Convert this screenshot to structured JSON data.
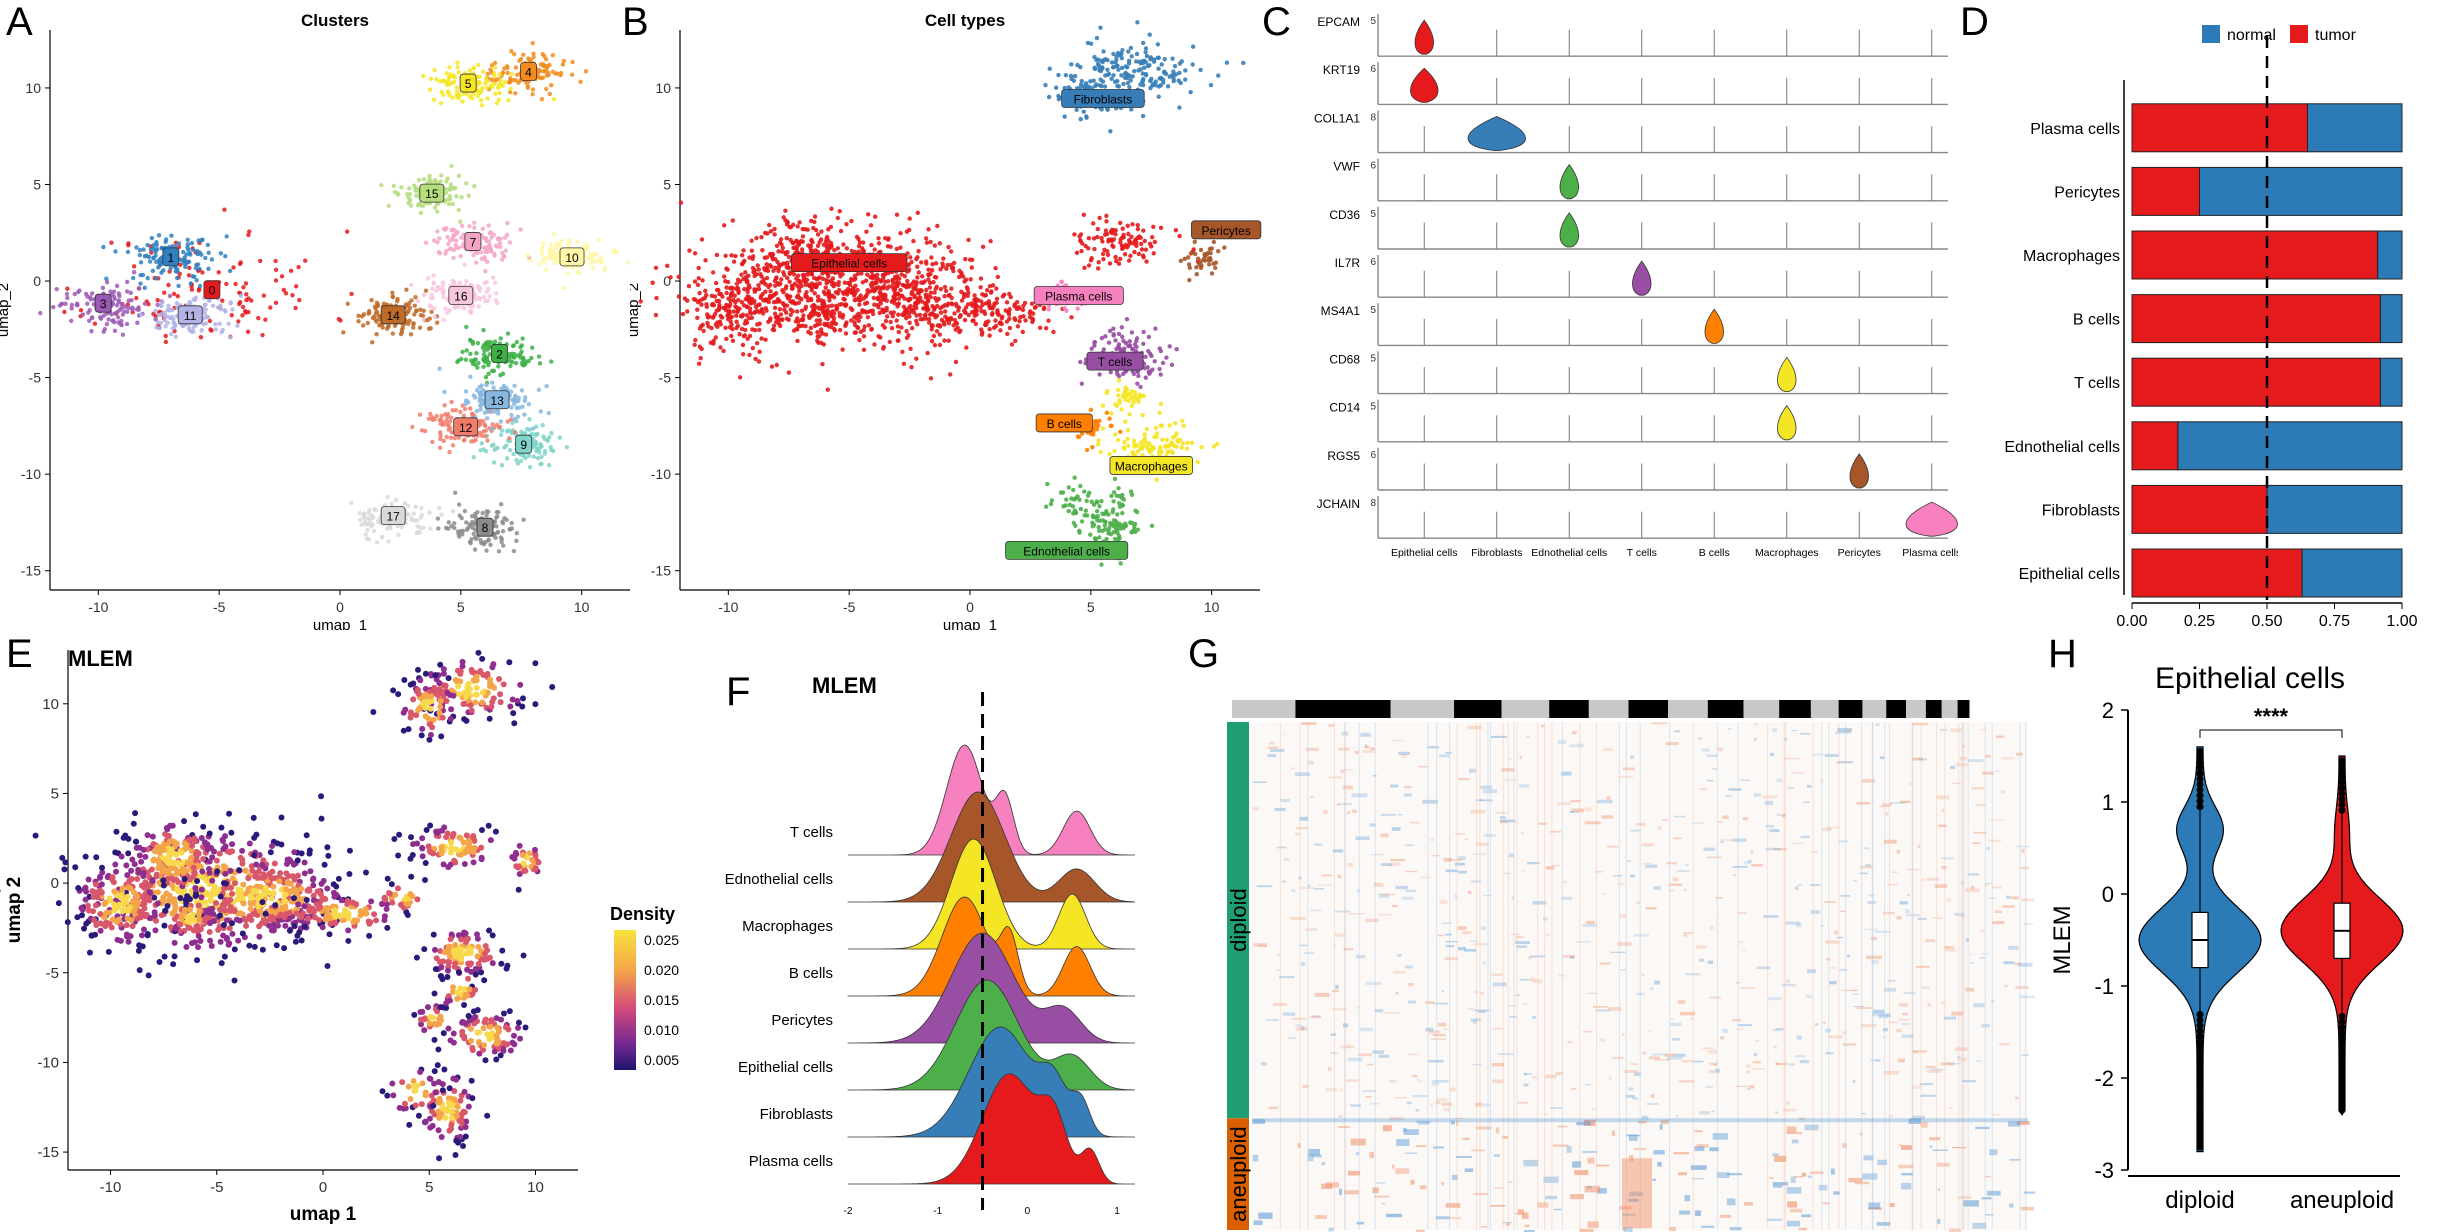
{
  "panel_letters": {
    "A": "A",
    "B": "B",
    "C": "C",
    "D": "D",
    "E": "E",
    "F": "F",
    "G": "G",
    "H": "H"
  },
  "colors": {
    "epithelial": "#e41a1c",
    "fibroblasts": "#377eb8",
    "endothelial": "#4daf4a",
    "tcells": "#984ea3",
    "bcells": "#ff7f00",
    "macrophages": "#f5e625",
    "pericytes": "#a65628",
    "plasma": "#f781bf",
    "normal": "#2c7bb6",
    "tumor": "#e41a1c",
    "diploid": "#1f9e73",
    "aneuploid": "#d95f02"
  },
  "chart_data": [
    {
      "id": "A",
      "type": "scatter",
      "title": "Clusters",
      "xlabel": "umap_1",
      "ylabel": "umap_2",
      "xlim": [
        -12,
        12
      ],
      "ylim": [
        -16,
        13
      ],
      "xticks": [
        "-10",
        "-5",
        "0",
        "5",
        "10"
      ],
      "yticks": [
        "10",
        "5",
        "0",
        "-5",
        "-10",
        "-15"
      ],
      "clusters": [
        {
          "label": "0",
          "x": -5.3,
          "y": -0.5,
          "color": "#e41a1c"
        },
        {
          "label": "1",
          "x": -7.0,
          "y": 1.2,
          "color": "#2f7fc1"
        },
        {
          "label": "2",
          "x": 6.6,
          "y": -3.8,
          "color": "#3cb044"
        },
        {
          "label": "3",
          "x": -9.8,
          "y": -1.2,
          "color": "#9b59b6"
        },
        {
          "label": "4",
          "x": 7.8,
          "y": 10.8,
          "color": "#f28c1e"
        },
        {
          "label": "5",
          "x": 5.3,
          "y": 10.2,
          "color": "#f5e625"
        },
        {
          "label": "7",
          "x": 5.5,
          "y": 2.0,
          "color": "#f4a6c8"
        },
        {
          "label": "8",
          "x": 6.0,
          "y": -12.8,
          "color": "#8c8c8c"
        },
        {
          "label": "9",
          "x": 7.6,
          "y": -8.5,
          "color": "#7fd3c8"
        },
        {
          "label": "10",
          "x": 9.6,
          "y": 1.2,
          "color": "#fff7a8"
        },
        {
          "label": "11",
          "x": -6.2,
          "y": -1.8,
          "color": "#b3b3e6"
        },
        {
          "label": "12",
          "x": 5.2,
          "y": -7.6,
          "color": "#f07c6c"
        },
        {
          "label": "13",
          "x": 6.5,
          "y": -6.2,
          "color": "#86b7e0"
        },
        {
          "label": "14",
          "x": 2.2,
          "y": -1.8,
          "color": "#c06a27"
        },
        {
          "label": "15",
          "x": 3.8,
          "y": 4.5,
          "color": "#b5dd7d"
        },
        {
          "label": "16",
          "x": 5.0,
          "y": -0.8,
          "color": "#f9c6df"
        },
        {
          "label": "17",
          "x": 2.2,
          "y": -12.2,
          "color": "#d9d9d9"
        }
      ]
    },
    {
      "id": "B",
      "type": "scatter",
      "title": "Cell types",
      "xlabel": "umap_1",
      "ylabel": "umap_2",
      "xlim": [
        -12,
        12
      ],
      "ylim": [
        -16,
        13
      ],
      "xticks": [
        "-10",
        "-5",
        "0",
        "5",
        "10"
      ],
      "yticks": [
        "10",
        "5",
        "0",
        "-5",
        "-10",
        "-15"
      ],
      "labels": [
        {
          "label": "Fibroblasts",
          "x": 5.5,
          "y": 9.4
        },
        {
          "label": "Pericytes",
          "x": 10.6,
          "y": 2.6
        },
        {
          "label": "Epithelial cells",
          "x": -5.0,
          "y": 0.9
        },
        {
          "label": "Plasma cells",
          "x": 4.5,
          "y": -0.8
        },
        {
          "label": "T cells",
          "x": 6.0,
          "y": -4.2
        },
        {
          "label": "B cells",
          "x": 3.9,
          "y": -7.4
        },
        {
          "label": "Macrophages",
          "x": 7.5,
          "y": -9.6
        },
        {
          "label": "Ednothelial cells",
          "x": 4.0,
          "y": -14.0
        }
      ]
    },
    {
      "id": "C",
      "type": "violin-stack",
      "genes": [
        {
          "gene": "EPCAM",
          "max": "5",
          "cell": 0
        },
        {
          "gene": "KRT19",
          "max": "6",
          "cell": 0
        },
        {
          "gene": "COL1A1",
          "max": "8",
          "cell": 1
        },
        {
          "gene": "VWF",
          "max": "6",
          "cell": 2
        },
        {
          "gene": "CD36",
          "max": "5",
          "cell": 2
        },
        {
          "gene": "IL7R",
          "max": "6",
          "cell": 3
        },
        {
          "gene": "MS4A1",
          "max": "5",
          "cell": 4
        },
        {
          "gene": "CD68",
          "max": "5",
          "cell": 5
        },
        {
          "gene": "CD14",
          "max": "5",
          "cell": 5
        },
        {
          "gene": "RGS5",
          "max": "6",
          "cell": 6
        },
        {
          "gene": "JCHAIN",
          "max": "8",
          "cell": 7
        }
      ],
      "cell_types": [
        "Epithelial cells",
        "Fibroblasts",
        "Ednothelial cells",
        "T cells",
        "B cells",
        "Macrophages",
        "Pericytes",
        "Plasma cells"
      ]
    },
    {
      "id": "D",
      "type": "bar",
      "orientation": "horizontal",
      "stacked": true,
      "legend": [
        "normal",
        "tumor"
      ],
      "categories": [
        "Plasma cells",
        "Pericytes",
        "Macrophages",
        "B cells",
        "T cells",
        "Ednothelial cells",
        "Fibroblasts",
        "Epithelial cells"
      ],
      "series": [
        {
          "name": "tumor",
          "values": [
            0.65,
            0.25,
            0.91,
            0.92,
            0.92,
            0.17,
            0.5,
            0.63
          ]
        },
        {
          "name": "normal",
          "values": [
            0.35,
            0.75,
            0.09,
            0.08,
            0.08,
            0.83,
            0.5,
            0.37
          ]
        }
      ],
      "xlim": [
        0,
        1
      ],
      "xticks": [
        "0.00",
        "0.25",
        "0.50",
        "0.75",
        "1.00"
      ],
      "refline": 0.5
    },
    {
      "id": "E",
      "type": "scatter",
      "title": "MLEM",
      "xlabel": "umap 1",
      "ylabel": "umap 2",
      "xlim": [
        -12,
        12
      ],
      "ylim": [
        -16,
        13
      ],
      "xticks": [
        "-10",
        "-5",
        "0",
        "5",
        "10"
      ],
      "yticks": [
        "10",
        "5",
        "0",
        "-5",
        "-10",
        "-15"
      ],
      "legend_title": "Density",
      "legend_ticks": [
        "0.025",
        "0.020",
        "0.015",
        "0.010",
        "0.005"
      ]
    },
    {
      "id": "F",
      "type": "ridgeline",
      "title": "MLEM",
      "categories": [
        "T cells",
        "Ednothelial cells",
        "Macrophages",
        "B cells",
        "Pericytes",
        "Epithelial cells",
        "Fibroblasts",
        "Plasma cells"
      ],
      "xticks": [
        "-2",
        "-1",
        "0",
        "1"
      ],
      "refline": -0.5
    },
    {
      "id": "G",
      "type": "heatmap",
      "row_groups": [
        {
          "name": "diploid",
          "fraction": 0.78
        },
        {
          "name": "aneuploid",
          "fraction": 0.22
        }
      ]
    },
    {
      "id": "H",
      "type": "violin",
      "title": "Epithelial cells",
      "ylabel": "MLEM",
      "categories": [
        "diploid",
        "aneuploid"
      ],
      "medians": [
        -0.5,
        -0.4
      ],
      "ylim": [
        -3,
        2
      ],
      "yticks": [
        "2",
        "1",
        "0",
        "-1",
        "-2",
        "-3"
      ],
      "significance": "****"
    }
  ]
}
